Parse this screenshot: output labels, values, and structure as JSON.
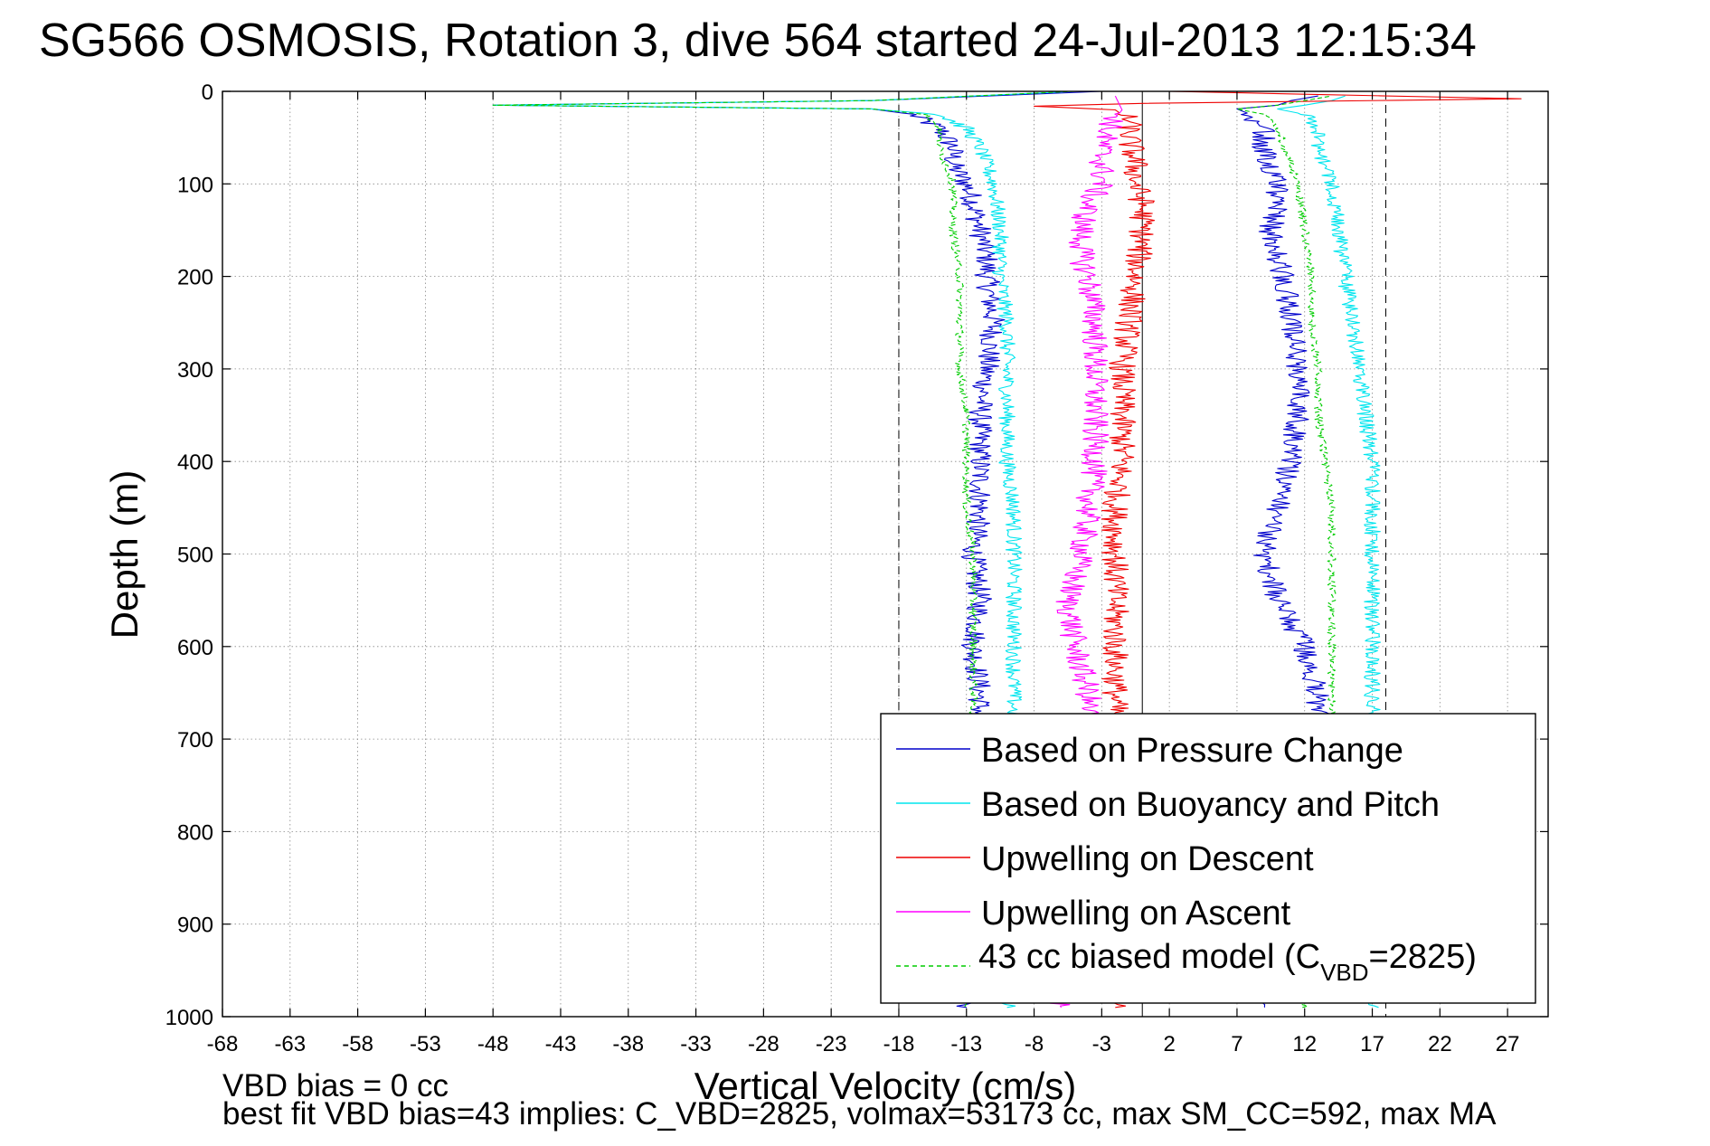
{
  "chart_data": {
    "type": "line",
    "title": "SG566 OSMOSIS, Rotation 3, dive 564 started 24-Jul-2013 12:15:34",
    "xlabel": "Vertical Velocity (cm/s)",
    "ylabel": "Depth (m)",
    "xlim": [
      -68,
      30
    ],
    "ylim": [
      1000,
      0
    ],
    "y_reversed": true,
    "grid": true,
    "x_ticks": [
      -68,
      -63,
      -58,
      -53,
      -48,
      -43,
      -38,
      -33,
      -28,
      -23,
      -18,
      -13,
      -8,
      -3,
      2,
      7,
      12,
      17,
      22,
      27
    ],
    "y_ticks": [
      0,
      100,
      200,
      300,
      400,
      500,
      600,
      700,
      800,
      900,
      1000
    ],
    "reference_lines": {
      "dashed_x": [
        -18,
        18
      ],
      "solid_x": [
        0
      ]
    },
    "footnotes": [
      "VBD bias = 0 cc",
      "best fit VBD bias=43 implies: C_VBD=2825, volmax=53173 cc, max SM_CC=592, max MA"
    ],
    "legend": {
      "placement": "bottom-right",
      "entries": [
        "Based on Pressure Change",
        "Based on Buoyancy and Pitch",
        "Upwelling on Descent",
        "Upwelling on Ascent",
        "43 cc biased model (C_VBD=2825)"
      ],
      "model_entry_parts": {
        "prefix": "43 cc biased model (C",
        "subscript": "VBD",
        "suffix": "=2825)"
      }
    },
    "series": [
      {
        "name": "Based on Pressure Change",
        "color": "#0000cc",
        "noise": 0.9,
        "segments": [
          {
            "depth": [
              0,
              10,
              15,
              19,
              25,
              40,
              60,
              80,
              100,
              120,
              150,
              180,
              200,
              250,
              300,
              350,
              400,
              450,
              500,
              550,
              600,
              650,
              700,
              750,
              800,
              850,
              900,
              950,
              990
            ],
            "vel": [
              -3,
              -20,
              -48,
              -20,
              -17,
              -15,
              -14,
              -14,
              -13,
              -12.5,
              -12,
              -11.5,
              -11.5,
              -11,
              -11.5,
              -12,
              -12,
              -12,
              -12.5,
              -12,
              -12.5,
              -12,
              -12,
              -12,
              -12,
              -12,
              -12,
              -12,
              -13
            ]
          },
          {
            "depth": [
              990,
              950,
              900,
              850,
              800,
              750,
              700,
              650,
              600,
              550,
              500,
              450,
              400,
              350,
              300,
              250,
              200,
              180,
              150,
              120,
              100,
              80,
              60,
              40,
              25,
              19,
              15,
              10,
              5
            ],
            "vel": [
              9,
              13,
              13,
              13,
              13,
              13,
              13,
              13,
              12,
              10,
              9,
              10,
              11,
              11.5,
              11.5,
              11,
              10.5,
              10,
              9.5,
              10,
              10,
              9.5,
              9,
              9,
              8,
              7,
              10,
              11,
              13
            ]
          }
        ]
      },
      {
        "name": "Based on Buoyancy and Pitch",
        "color": "#00e5ee",
        "noise": 0.6,
        "segments": [
          {
            "depth": [
              0,
              10,
              15,
              19,
              25,
              40,
              60,
              80,
              100,
              150,
              200,
              250,
              300,
              350,
              400,
              450,
              500,
              550,
              600,
              650,
              700,
              800,
              900,
              990
            ],
            "vel": [
              -5,
              -20,
              -48,
              -20,
              -15,
              -13,
              -12,
              -11.5,
              -11,
              -10.5,
              -10.5,
              -10,
              -10,
              -10,
              -10,
              -9.5,
              -9.5,
              -9.5,
              -9.5,
              -9.5,
              -9.5,
              -9.5,
              -9.5,
              -10
            ]
          },
          {
            "depth": [
              990,
              900,
              800,
              700,
              650,
              600,
              550,
              500,
              450,
              400,
              350,
              300,
              250,
              200,
              150,
              100,
              80,
              60,
              40,
              25,
              19,
              15,
              10,
              5
            ],
            "vel": [
              17,
              17,
              17,
              17,
              17,
              17,
              17,
              17,
              17,
              17,
              16.5,
              16,
              15.5,
              15,
              14.5,
              14,
              13.5,
              13,
              13,
              12,
              10,
              12,
              14,
              15
            ]
          }
        ]
      },
      {
        "name": "Upwelling on Descent",
        "color": "#ee0000",
        "noise": 1.0,
        "segments": [
          {
            "depth": [
              0,
              8,
              13,
              16,
              20,
              30,
              50,
              80,
              100,
              120,
              150,
              200,
              250,
              300,
              350,
              400,
              450,
              500,
              550,
              600,
              650,
              700,
              800,
              900,
              990
            ],
            "vel": [
              2,
              28,
              0,
              -8,
              -2,
              -1,
              -1,
              -0.5,
              -0.5,
              0,
              0,
              -0.5,
              -1,
              -1.5,
              -1.5,
              -1.5,
              -2,
              -2,
              -2,
              -2,
              -2,
              -2,
              -2,
              -2,
              -2
            ]
          }
        ]
      },
      {
        "name": "Upwelling on Ascent",
        "color": "#ff00ff",
        "noise": 1.0,
        "segments": [
          {
            "depth": [
              5,
              20,
              40,
              60,
              80,
              100,
              120,
              150,
              180,
              200,
              250,
              300,
              350,
              400,
              450,
              500,
              550,
              600,
              650,
              700,
              800,
              900,
              990
            ],
            "vel": [
              -2,
              -1.5,
              -2.5,
              -3,
              -3,
              -3,
              -4,
              -4.5,
              -4.5,
              -4,
              -3.5,
              -3.5,
              -3.5,
              -3.5,
              -4,
              -4.5,
              -5.5,
              -5,
              -4,
              -4,
              -4,
              -4,
              -6
            ]
          }
        ]
      },
      {
        "name": "43 cc biased model (C_VBD=2825)",
        "color": "#00cc00",
        "dashed": true,
        "noise": 0.3,
        "segments": [
          {
            "depth": [
              0,
              10,
              15,
              19,
              25,
              40,
              60,
              80,
              100,
              150,
              200,
              250,
              300,
              350,
              400,
              450,
              500,
              550,
              600,
              650,
              700,
              800,
              900,
              990
            ],
            "vel": [
              -5,
              -20,
              -48,
              -20,
              -16,
              -15,
              -15,
              -14.5,
              -14,
              -14,
              -13.5,
              -13.5,
              -13.5,
              -13,
              -13,
              -13,
              -12.5,
              -12.5,
              -12.5,
              -12.5,
              -12.5,
              -12.5,
              -12.5,
              -13
            ]
          },
          {
            "depth": [
              990,
              900,
              800,
              700,
              650,
              600,
              550,
              500,
              450,
              400,
              350,
              300,
              250,
              200,
              150,
              100,
              80,
              60,
              40,
              25,
              19,
              15,
              10,
              5
            ],
            "vel": [
              12,
              14,
              14,
              14,
              14,
              14,
              14,
              14,
              14,
              13.5,
              13,
              13,
              12.5,
              12.5,
              12,
              11.5,
              11,
              10.5,
              10,
              9,
              7,
              10,
              12,
              14
            ]
          }
        ]
      }
    ]
  }
}
